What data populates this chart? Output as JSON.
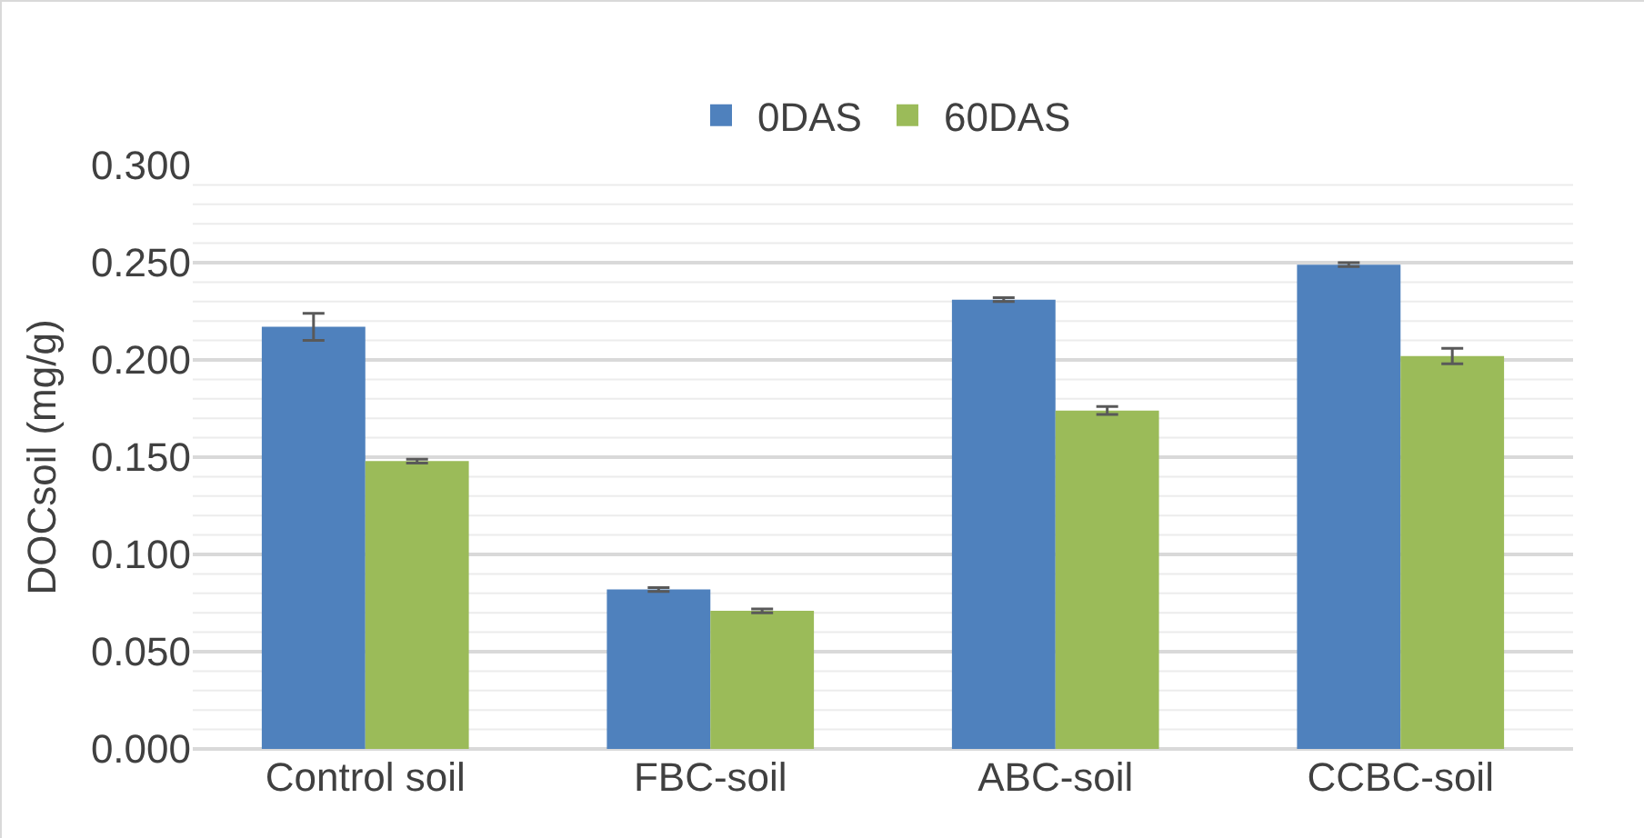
{
  "chart_data": {
    "type": "bar",
    "ylabel": "DOCsoil (mg/g)",
    "categories": [
      "Control soil",
      "FBC-soil",
      "ABC-soil",
      "CCBC-soil"
    ],
    "series": [
      {
        "name": "0DAS",
        "color": "#4f81bd",
        "values": [
          0.217,
          0.082,
          0.231,
          0.249
        ],
        "errors": [
          0.007,
          0.001,
          0.001,
          0.001
        ]
      },
      {
        "name": "60DAS",
        "color": "#9bbb59",
        "values": [
          0.148,
          0.071,
          0.174,
          0.202
        ],
        "errors": [
          0.001,
          0.001,
          0.002,
          0.004
        ]
      }
    ],
    "ylim": [
      0,
      0.3
    ],
    "yticks": [
      {
        "value": 0,
        "label": "0.000"
      },
      {
        "value": 0.05,
        "label": "0.050"
      },
      {
        "value": 0.1,
        "label": "0.100"
      },
      {
        "value": 0.15,
        "label": "0.150"
      },
      {
        "value": 0.2,
        "label": "0.200"
      },
      {
        "value": 0.25,
        "label": "0.250"
      },
      {
        "value": 0.3,
        "label": "0.300"
      }
    ],
    "grid": true,
    "legend": "top"
  }
}
